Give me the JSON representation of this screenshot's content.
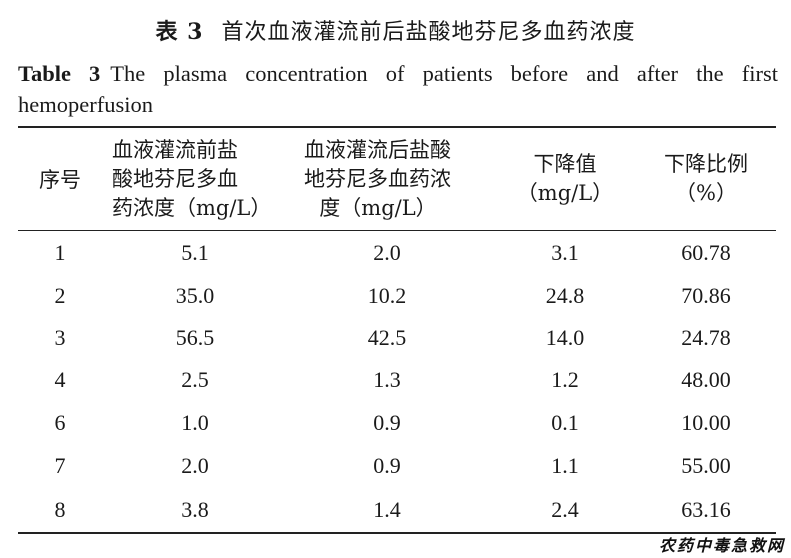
{
  "caption": {
    "cn_label": "表 3",
    "cn_title": "首次血液灌流前后盐酸地芬尼多血药浓度",
    "en_label": "Table 3",
    "en_title": "The plasma concentration of patients before and after the first hemoperfusion"
  },
  "headers": {
    "col1": "序号",
    "col2_l1": "血液灌流前盐",
    "col2_l2": "酸地芬尼多血",
    "col2_l3": "药浓度（mg/L）",
    "col3_l1": "血液灌流后盐酸",
    "col3_l2": "地芬尼多血药浓",
    "col3_l3": "度（mg/L）",
    "col4_l1": "下降值",
    "col4_l2": "（mg/L）",
    "col5_l1": "下降比例",
    "col5_l2": "（%）"
  },
  "rows": [
    [
      "1",
      "5.1",
      "2.0",
      "3.1",
      "60.78"
    ],
    [
      "2",
      "35.0",
      "10.2",
      "24.8",
      "70.86"
    ],
    [
      "3",
      "56.5",
      "42.5",
      "14.0",
      "24.78"
    ],
    [
      "4",
      "2.5",
      "1.3",
      "1.2",
      "48.00"
    ],
    [
      "6",
      "1.0",
      "0.9",
      "0.1",
      "10.00"
    ],
    [
      "7",
      "2.0",
      "0.9",
      "1.1",
      "55.00"
    ],
    [
      "8",
      "3.8",
      "1.4",
      "2.4",
      "63.16"
    ]
  ],
  "watermark": "农药中毒急救网"
}
